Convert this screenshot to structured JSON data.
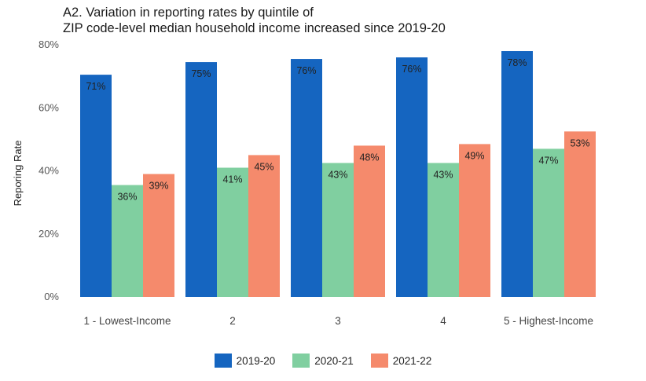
{
  "chart_data": {
    "type": "bar",
    "title_lines": [
      "A2. Variation in reporting rates by quintile of",
      "ZIP code-level median household income increased since 2019-20"
    ],
    "xlabel": "",
    "ylabel": "Reporing Rate",
    "ylim": [
      0,
      80
    ],
    "yticks": [
      "0%",
      "20%",
      "40%",
      "60%",
      "80%"
    ],
    "ytick_values": [
      0,
      20,
      40,
      60,
      80
    ],
    "categories": [
      "1 - Lowest-Income",
      "2",
      "3",
      "4",
      "5 - Highest-Income"
    ],
    "series": [
      {
        "name": "2019-20",
        "color": "#1565c0",
        "values": [
          70.5,
          74.5,
          75.5,
          76.0,
          78.0
        ],
        "labels": [
          "71%",
          "75%",
          "76%",
          "76%",
          "78%"
        ]
      },
      {
        "name": "2020-21",
        "color": "#80cfa0",
        "values": [
          35.5,
          41.0,
          42.5,
          42.5,
          47.0
        ],
        "labels": [
          "36%",
          "41%",
          "43%",
          "43%",
          "47%"
        ]
      },
      {
        "name": "2021-22",
        "color": "#f58a6c",
        "values": [
          39.0,
          45.0,
          48.0,
          48.5,
          52.5
        ],
        "labels": [
          "39%",
          "45%",
          "48%",
          "49%",
          "53%"
        ]
      }
    ],
    "legend_position": "bottom"
  }
}
